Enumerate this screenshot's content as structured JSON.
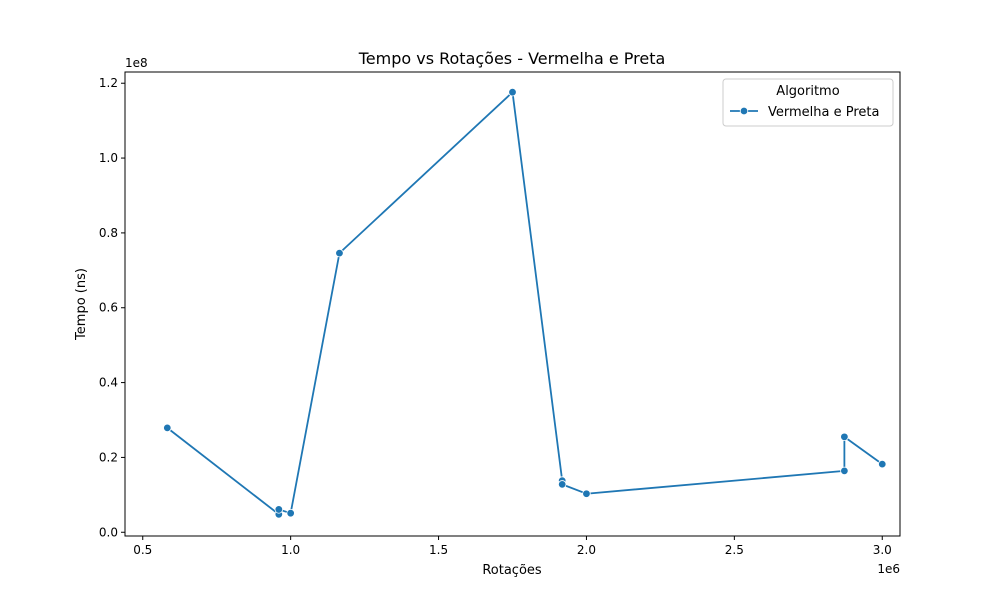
{
  "chart_data": {
    "type": "line",
    "title": "Tempo vs Rotações - Vermelha e Preta",
    "xlabel": "Rotações",
    "ylabel": "Tempo (ns)",
    "x_offset_label": "1e6",
    "y_offset_label": "1e8",
    "xlim": [
      0.44,
      3.06
    ],
    "ylim": [
      -0.01,
      1.23
    ],
    "x_ticks": [
      0.5,
      1.0,
      1.5,
      2.0,
      2.5,
      3.0
    ],
    "x_tick_labels": [
      "0.5",
      "1.0",
      "1.5",
      "2.0",
      "2.5",
      "3.0"
    ],
    "y_ticks": [
      0.0,
      0.2,
      0.4,
      0.6,
      0.8,
      1.0,
      1.2
    ],
    "y_tick_labels": [
      "0.0",
      "0.2",
      "0.4",
      "0.6",
      "0.8",
      "1.0",
      "1.2"
    ],
    "grid": false,
    "legend": {
      "title": "Algoritmo",
      "placement": "top-right"
    },
    "series": [
      {
        "name": "Vermelha e Preta",
        "color": "#1f77b4",
        "marker": "circle",
        "x": [
          0.583,
          0.96,
          0.96,
          1.0,
          1.165,
          1.75,
          1.918,
          1.918,
          2.0,
          2.872,
          2.872,
          3.0
        ],
        "y": [
          0.279,
          0.048,
          0.061,
          0.051,
          0.746,
          1.176,
          0.138,
          0.128,
          0.103,
          0.164,
          0.255,
          0.182
        ]
      }
    ]
  }
}
